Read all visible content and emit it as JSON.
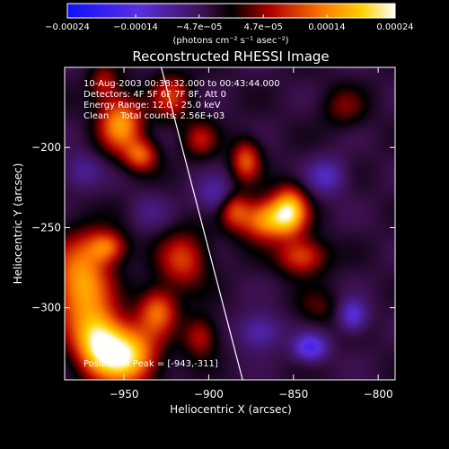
{
  "chart_data": {
    "type": "heatmap",
    "title": "Reconstructed RHESSI Image",
    "xlabel": "Heliocentric X (arcsec)",
    "ylabel": "Heliocentric Y (arcsec)",
    "xlim": [
      -985,
      -790
    ],
    "ylim": [
      -345,
      -150
    ],
    "x_ticks": [
      -950,
      -900,
      -850,
      -800
    ],
    "y_ticks": [
      -200,
      -250,
      -300
    ],
    "x_tick_labels": [
      "−950",
      "−900",
      "−850",
      "−800"
    ],
    "y_tick_labels": [
      "−200",
      "−250",
      "−300"
    ],
    "colorbar": {
      "range": [
        -0.00024,
        0.00024
      ],
      "tick_values": [
        -0.00024,
        -0.00014,
        -4.7e-05,
        4.7e-05,
        0.00014,
        0.00024
      ],
      "tick_labels": [
        "−0.00024",
        "−0.00014",
        "−4.7e−05",
        "4.7e−05",
        "0.00014",
        "0.00024"
      ],
      "units_label": "(photons cm⁻² s⁻¹ asec⁻²)"
    },
    "annotations": {
      "time_range": "10-Aug-2003 00:38:32.000 to 00:43:44.000",
      "detectors": "Detectors: 4F 5F 6F 7F 8F, Att 0",
      "energy": "Energy Range: 12.0 - 25.0 keV",
      "clean": "Clean    Total counts: 2.56E+03",
      "peak": "Position of Peak = [-943,-311]"
    },
    "limb_line": {
      "x": [
        -928,
        -880
      ],
      "y": [
        -150,
        -345
      ]
    },
    "sources": [
      {
        "x": -962,
        "y": -160,
        "sx": 6,
        "sy": 8,
        "a": 0.35
      },
      {
        "x": -952,
        "y": -185,
        "sx": 9,
        "sy": 12,
        "a": 0.75
      },
      {
        "x": -940,
        "y": -205,
        "sx": 7,
        "sy": 7,
        "a": 0.55
      },
      {
        "x": -922,
        "y": -168,
        "sx": 8,
        "sy": 10,
        "a": 0.45
      },
      {
        "x": -905,
        "y": -195,
        "sx": 7,
        "sy": 8,
        "a": 0.35
      },
      {
        "x": -975,
        "y": -285,
        "sx": 12,
        "sy": 20,
        "a": 0.8
      },
      {
        "x": -960,
        "y": -262,
        "sx": 8,
        "sy": 7,
        "a": 0.55
      },
      {
        "x": -948,
        "y": -330,
        "sx": 12,
        "sy": 13,
        "a": 0.95
      },
      {
        "x": -965,
        "y": -322,
        "sx": 10,
        "sy": 14,
        "a": 0.85
      },
      {
        "x": -930,
        "y": -302,
        "sx": 8,
        "sy": 10,
        "a": 0.6
      },
      {
        "x": -915,
        "y": -270,
        "sx": 10,
        "sy": 12,
        "a": 0.5
      },
      {
        "x": -905,
        "y": -318,
        "sx": 7,
        "sy": 9,
        "a": 0.4
      },
      {
        "x": -878,
        "y": -208,
        "sx": 6,
        "sy": 9,
        "a": 0.55
      },
      {
        "x": -865,
        "y": -245,
        "sx": 12,
        "sy": 9,
        "a": 0.8
      },
      {
        "x": -852,
        "y": -238,
        "sx": 7,
        "sy": 10,
        "a": 0.7
      },
      {
        "x": -845,
        "y": -268,
        "sx": 10,
        "sy": 8,
        "a": 0.55
      },
      {
        "x": -885,
        "y": -238,
        "sx": 6,
        "sy": 8,
        "a": 0.45
      },
      {
        "x": -820,
        "y": -175,
        "sx": 9,
        "sy": 9,
        "a": 0.25
      },
      {
        "x": -835,
        "y": -300,
        "sx": 9,
        "sy": 8,
        "a": 0.2
      },
      {
        "x": -870,
        "y": -315,
        "sx": 9,
        "sy": 8,
        "a": -0.35
      },
      {
        "x": -840,
        "y": -325,
        "sx": 7,
        "sy": 6,
        "a": -0.55
      },
      {
        "x": -815,
        "y": -305,
        "sx": 6,
        "sy": 7,
        "a": -0.45
      },
      {
        "x": -830,
        "y": -218,
        "sx": 8,
        "sy": 8,
        "a": -0.35
      },
      {
        "x": -895,
        "y": -230,
        "sx": 9,
        "sy": 8,
        "a": -0.3
      },
      {
        "x": -975,
        "y": -215,
        "sx": 8,
        "sy": 8,
        "a": -0.25
      },
      {
        "x": -935,
        "y": -240,
        "sx": 8,
        "sy": 8,
        "a": -0.15
      }
    ]
  }
}
